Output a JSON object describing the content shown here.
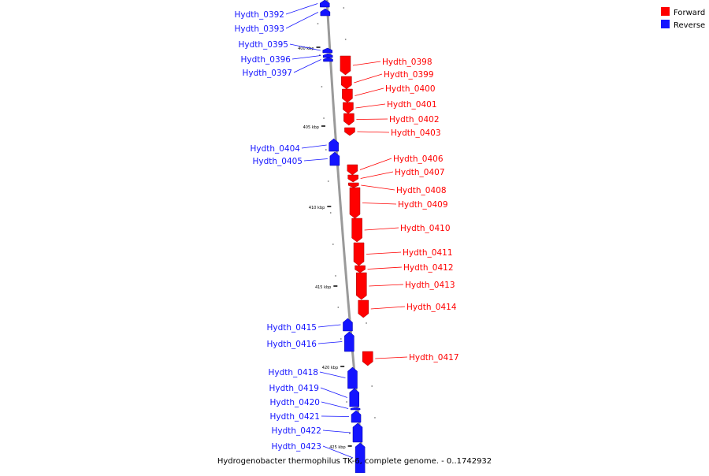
{
  "caption": "Hydrogenobacter thermophilus TK-6, complete genome. - 0..1742932",
  "legend": {
    "forward_label": "Forward",
    "reverse_label": "Reverse",
    "forward_color": "#ff0000",
    "reverse_color": "#1414ff"
  },
  "backbone_color": "#9a9a9a",
  "scale_ticks": [
    "400 kbp",
    "405 kbp",
    "410 kbp",
    "415 kbp",
    "420 kbp",
    "425 kbp"
  ],
  "genes": [
    {
      "name": "Hydth_0392",
      "strand": "reverse"
    },
    {
      "name": "Hydth_0393",
      "strand": "reverse"
    },
    {
      "name": "Hydth_0395",
      "strand": "reverse"
    },
    {
      "name": "Hydth_0396",
      "strand": "reverse"
    },
    {
      "name": "Hydth_0397",
      "strand": "reverse"
    },
    {
      "name": "Hydth_0398",
      "strand": "forward"
    },
    {
      "name": "Hydth_0399",
      "strand": "forward"
    },
    {
      "name": "Hydth_0400",
      "strand": "forward"
    },
    {
      "name": "Hydth_0401",
      "strand": "forward"
    },
    {
      "name": "Hydth_0402",
      "strand": "forward"
    },
    {
      "name": "Hydth_0403",
      "strand": "forward"
    },
    {
      "name": "Hydth_0404",
      "strand": "reverse"
    },
    {
      "name": "Hydth_0405",
      "strand": "reverse"
    },
    {
      "name": "Hydth_0406",
      "strand": "forward"
    },
    {
      "name": "Hydth_0407",
      "strand": "forward"
    },
    {
      "name": "Hydth_0408",
      "strand": "forward"
    },
    {
      "name": "Hydth_0409",
      "strand": "forward"
    },
    {
      "name": "Hydth_0410",
      "strand": "forward"
    },
    {
      "name": "Hydth_0411",
      "strand": "forward"
    },
    {
      "name": "Hydth_0412",
      "strand": "forward"
    },
    {
      "name": "Hydth_0413",
      "strand": "forward"
    },
    {
      "name": "Hydth_0414",
      "strand": "forward"
    },
    {
      "name": "Hydth_0415",
      "strand": "reverse"
    },
    {
      "name": "Hydth_0416",
      "strand": "reverse"
    },
    {
      "name": "Hydth_0417",
      "strand": "forward"
    },
    {
      "name": "Hydth_0418",
      "strand": "reverse"
    },
    {
      "name": "Hydth_0419",
      "strand": "reverse"
    },
    {
      "name": "Hydth_0420",
      "strand": "reverse"
    },
    {
      "name": "Hydth_0421",
      "strand": "reverse"
    },
    {
      "name": "Hydth_0422",
      "strand": "reverse"
    },
    {
      "name": "Hydth_0423",
      "strand": "reverse"
    }
  ]
}
